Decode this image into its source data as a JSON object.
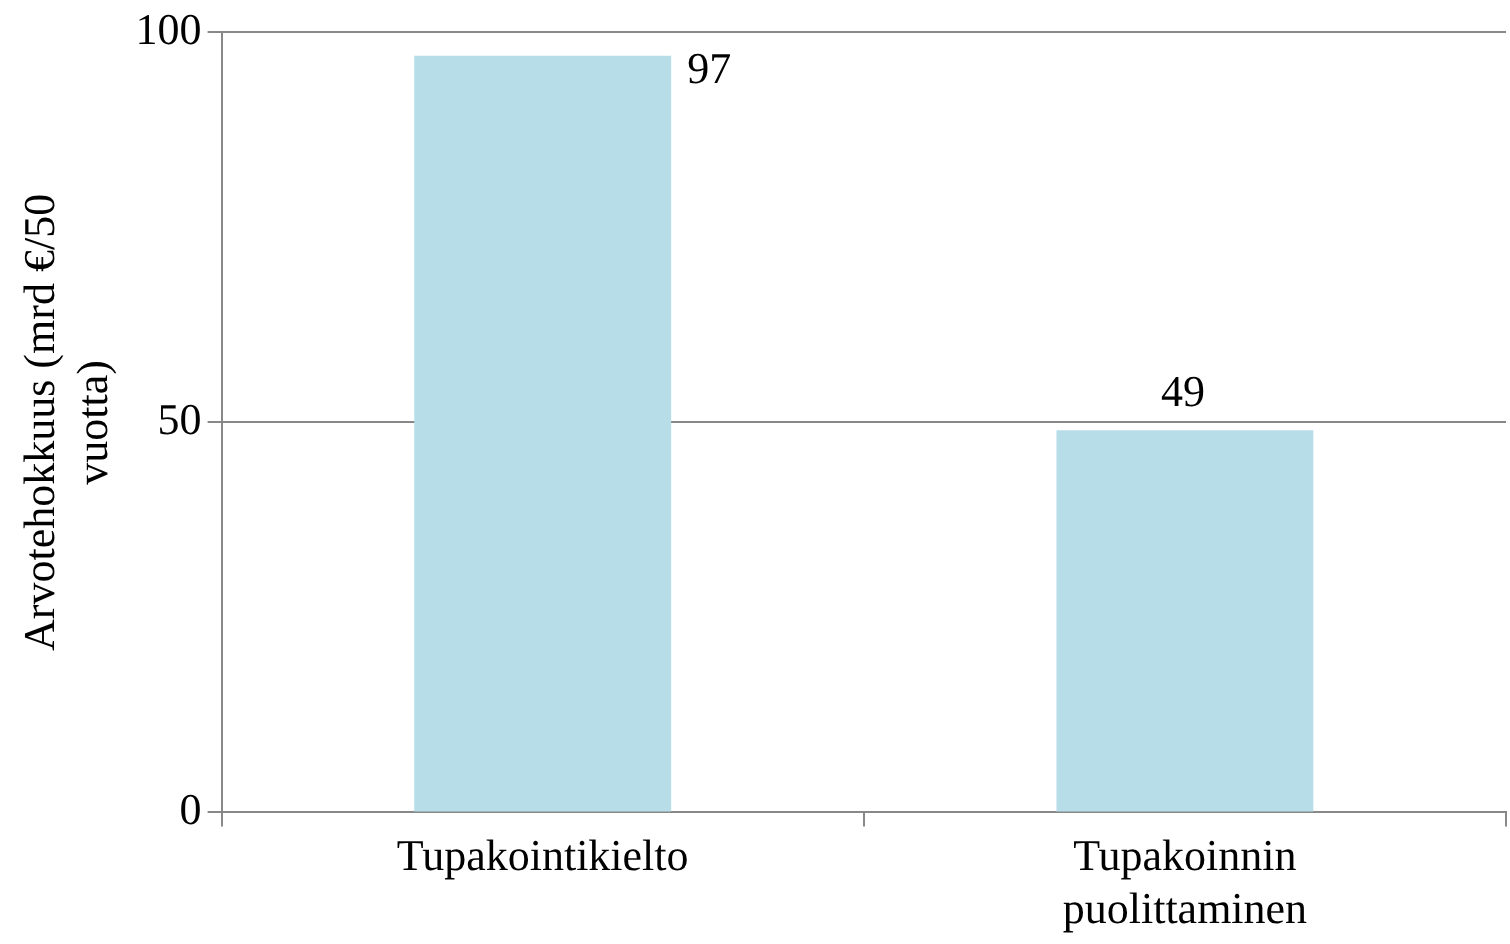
{
  "chart_data": {
    "type": "bar",
    "ylabel": "Arvotehokkuus (mrd €/50 vuotta)",
    "categories": [
      "Tupakointikielto",
      "Tupakoinnin puolittaminen"
    ],
    "values": [
      97,
      49
    ],
    "color": "#b7dee8",
    "ylim": [
      0,
      100
    ],
    "yticks": [
      0,
      50,
      100
    ],
    "grid": "y",
    "legend": false,
    "data_labels": true
  }
}
